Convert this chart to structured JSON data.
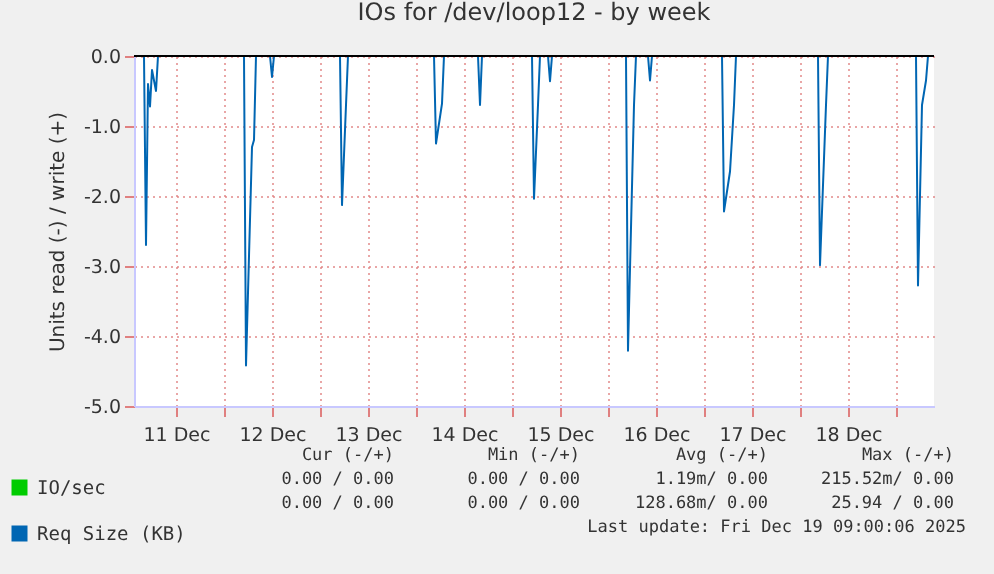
{
  "chart_data": {
    "type": "line",
    "title": "IOs for /dev/loop12 - by week",
    "ylabel": "Units read (-) / write (+)",
    "xlim": [
      "--12-11T01:30",
      "--12-19T09:30"
    ],
    "xticks": [
      {
        "value": "--12-11T12:00",
        "label": "11 Dec"
      },
      {
        "value": "--12-12T00:00",
        "label": null
      },
      {
        "value": "--12-12T12:00",
        "label": "12 Dec"
      },
      {
        "value": "--12-13T00:00",
        "label": null
      },
      {
        "value": "--12-13T12:00",
        "label": "13 Dec"
      },
      {
        "value": "--12-14T00:00",
        "label": null
      },
      {
        "value": "--12-14T12:00",
        "label": "14 Dec"
      },
      {
        "value": "--12-15T00:00",
        "label": null
      },
      {
        "value": "--12-15T12:00",
        "label": "15 Dec"
      },
      {
        "value": "--12-16T00:00",
        "label": null
      },
      {
        "value": "--12-16T12:00",
        "label": "16 Dec"
      },
      {
        "value": "--12-17T00:00",
        "label": null
      },
      {
        "value": "--12-17T12:00",
        "label": "17 Dec"
      },
      {
        "value": "--12-18T00:00",
        "label": null
      },
      {
        "value": "--12-18T12:00",
        "label": "18 Dec"
      },
      {
        "value": "--12-19T00:00",
        "label": null
      }
    ],
    "ylim": [
      -5,
      0
    ],
    "yticks": [
      {
        "value": -5,
        "label": "-5.0"
      },
      {
        "value": -4,
        "label": "-4.0"
      },
      {
        "value": -3,
        "label": "-3.0"
      },
      {
        "value": -2,
        "label": "-2.0"
      },
      {
        "value": -1,
        "label": "-1.0"
      },
      {
        "value": 0,
        "label": "0.0"
      }
    ],
    "grid": true,
    "legend": "bottom left",
    "ref_lines": [
      {
        "axis": "y",
        "value": 0,
        "color": "#000000"
      }
    ],
    "series": [
      {
        "name": "IO/sec",
        "color": "#00cc00"
      },
      {
        "name": "Req Size (KB)",
        "color": "#0066b3",
        "x": [
          "--12-11T01:30",
          "--12-11T04:00",
          "--12-11T04:30",
          "--12-11T05:00",
          "--12-11T05:30",
          "--12-11T06:00",
          "--12-11T07:00",
          "--12-11T07:30",
          "--12-12T05:00",
          "--12-12T05:30",
          "--12-12T07:00",
          "--12-12T07:30",
          "--12-12T08:00",
          "--12-12T11:30",
          "--12-12T12:00",
          "--12-12T12:30",
          "--12-13T05:00",
          "--12-13T05:30",
          "--12-13T06:30",
          "--12-13T07:00",
          "--12-14T04:30",
          "--12-14T05:00",
          "--12-14T06:30",
          "--12-14T07:00",
          "--12-14T15:30",
          "--12-14T16:00",
          "--12-14T16:30",
          "--12-15T05:00",
          "--12-15T05:30",
          "--12-15T06:30",
          "--12-15T07:00",
          "--12-15T09:00",
          "--12-15T09:30",
          "--12-15T10:00",
          "--12-16T04:30",
          "--12-16T05:00",
          "--12-16T06:30",
          "--12-16T07:00",
          "--12-16T10:00",
          "--12-16T10:30",
          "--12-16T11:00",
          "--12-17T04:30",
          "--12-17T05:00",
          "--12-17T06:30",
          "--12-17T07:30",
          "--12-17T08:00",
          "--12-18T04:30",
          "--12-18T05:00",
          "--12-18T06:30",
          "--12-18T07:00",
          "--12-19T05:00",
          "--12-19T05:30",
          "--12-19T06:30",
          "--12-19T07:30",
          "--12-19T08:00",
          "--12-19T09:30"
        ],
        "values": [
          0,
          0,
          -2.7,
          -0.4,
          -0.72,
          -0.2,
          -0.5,
          0,
          0,
          -4.42,
          -1.3,
          -1.2,
          0,
          0,
          -0.3,
          0,
          0,
          -2.13,
          -0.7,
          0,
          0,
          -1.25,
          -0.68,
          0,
          0,
          -0.7,
          0,
          0,
          -2.04,
          -0.7,
          0,
          0,
          -0.36,
          0,
          0,
          -4.21,
          -0.7,
          0,
          0,
          -0.35,
          0,
          0,
          -2.22,
          -1.65,
          -0.7,
          0,
          0,
          -2.99,
          -0.7,
          0,
          0,
          -3.28,
          -0.7,
          -0.35,
          0,
          0
        ]
      }
    ],
    "annotations": [
      "Cur (-/+)",
      "Min (-/+)",
      "Avg (-/+)",
      "Max (-/+)",
      "0.00 / 0.00",
      "0.00 / 0.00",
      "1.19m/ 0.00",
      "215.52m/ 0.00",
      "0.00 / 0.00",
      "0.00 / 0.00",
      "128.68m/ 0.00",
      "25.94 / 0.00",
      "Last update: Fri Dec 19 09:00:06 2025"
    ]
  }
}
